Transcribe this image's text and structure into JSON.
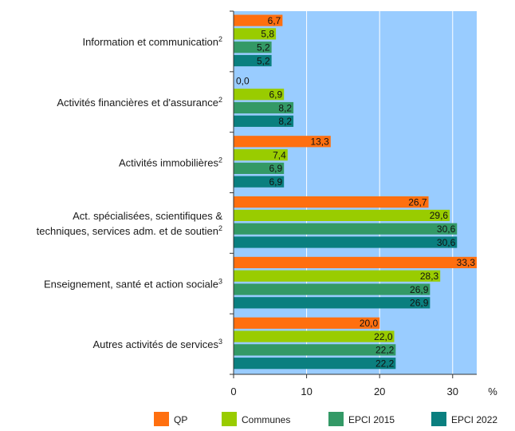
{
  "chart_data": {
    "type": "bar",
    "orientation": "horizontal",
    "categories": [
      {
        "lines": [
          "Information et communication"
        ],
        "sup": "2"
      },
      {
        "lines": [
          "Activités financières et d'assurance"
        ],
        "sup": "2"
      },
      {
        "lines": [
          "Activités immobilières"
        ],
        "sup": "2"
      },
      {
        "lines": [
          "Act. spécialisées, scientifiques &",
          "techniques, services adm. et de soutien"
        ],
        "sup": "2"
      },
      {
        "lines": [
          "Enseignement, santé et action sociale"
        ],
        "sup": "3"
      },
      {
        "lines": [
          "Autres activités de services"
        ],
        "sup": "3"
      }
    ],
    "series": [
      {
        "name": "QP",
        "color": "#ff6f0f",
        "values": [
          6.7,
          0.0,
          13.3,
          26.7,
          33.3,
          20.0
        ],
        "labels": [
          "6,7",
          "0,0",
          "13,3",
          "26,7",
          "33,3",
          "20,0"
        ]
      },
      {
        "name": "Communes",
        "color": "#99cc00",
        "values": [
          5.8,
          6.9,
          7.4,
          29.6,
          28.3,
          22.0
        ],
        "labels": [
          "5,8",
          "6,9",
          "7,4",
          "29,6",
          "28,3",
          "22,0"
        ]
      },
      {
        "name": "EPCI 2015",
        "color": "#339966",
        "values": [
          5.2,
          8.2,
          6.9,
          30.6,
          26.9,
          22.2
        ],
        "labels": [
          "5,2",
          "8,2",
          "6,9",
          "30,6",
          "26,9",
          "22,2"
        ]
      },
      {
        "name": "EPCI 2022",
        "color": "#0a7f7f",
        "values": [
          5.2,
          8.2,
          6.9,
          30.6,
          26.9,
          22.2
        ],
        "labels": [
          "5,2",
          "8,2",
          "6,9",
          "30,6",
          "26,9",
          "22,2"
        ]
      }
    ],
    "xlim": [
      0,
      33.3
    ],
    "xticks": [
      0,
      10,
      20,
      30
    ],
    "xunit": "%",
    "grid": true,
    "legend_position": "bottom",
    "plot_background": "#99ccff"
  }
}
